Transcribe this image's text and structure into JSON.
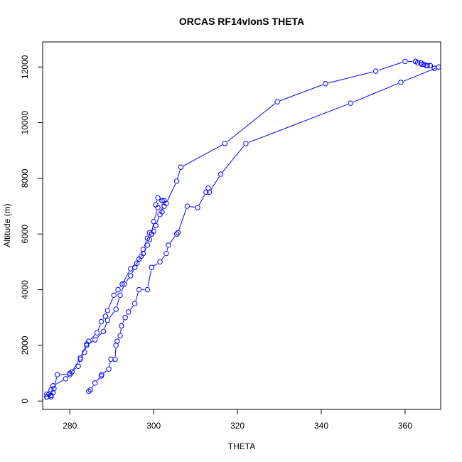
{
  "chart_data": {
    "type": "line",
    "title": "ORCAS RF14vlonS THETA",
    "xlabel": "THETA",
    "ylabel": "Altitude (m)",
    "xlim": [
      273.5,
      368.5
    ],
    "ylim": [
      -300,
      12900
    ],
    "xticks": [
      280,
      300,
      320,
      340,
      360
    ],
    "yticks": [
      0,
      2000,
      4000,
      6000,
      8000,
      10000,
      12000
    ],
    "grid": false,
    "marker": "open-circle",
    "color": "#0000ff",
    "series": [
      {
        "x": [
          284.5,
          284.9,
          286.0,
          287.5,
          287.6,
          289.3,
          289.8,
          290.8,
          291.0,
          291.3,
          292.0,
          292.3,
          293.2,
          294.0,
          295.5,
          296.5,
          298.5,
          299.5,
          301.5,
          303.0,
          303.5,
          305.5,
          305.8,
          308.0,
          310.5,
          312.5,
          313.0,
          313.3,
          316.0,
          322.0,
          347.0,
          359.0,
          368.0,
          367.0,
          366.0,
          365.3,
          364.5,
          363.8,
          362.5
        ],
        "y": [
          350,
          400,
          650,
          900,
          950,
          1150,
          1500,
          1500,
          2000,
          2150,
          2350,
          2700,
          3000,
          3200,
          3500,
          4000,
          4000,
          4800,
          5000,
          5300,
          5600,
          6000,
          6050,
          7000,
          6950,
          7500,
          7650,
          7500,
          8150,
          9250,
          10700,
          11450,
          12000,
          11950,
          12050,
          12050,
          12100,
          12150,
          12200
        ]
      },
      {
        "x": [
          274.5,
          274.5,
          275.5,
          275.5,
          276.0,
          276.2,
          277.0,
          280.0,
          280.5,
          282.5,
          284.0,
          284.5,
          286.5,
          287.5,
          288.5,
          289.0,
          290.5,
          291.5,
          292.5,
          294.5,
          296.0,
          297.0,
          297.5,
          298.5,
          299.0,
          299.5,
          300.0,
          301.0,
          302.0,
          302.0,
          303.0,
          305.5,
          306.5,
          317.0,
          329.5,
          341.0,
          353.0,
          360.0,
          362.5,
          363.0,
          364.0,
          365.0,
          366.0
        ],
        "y": [
          150,
          250,
          200,
          200,
          300,
          450,
          950,
          950,
          1050,
          1550,
          2050,
          2150,
          2450,
          2850,
          3050,
          3250,
          3800,
          4000,
          4200,
          4750,
          4950,
          5200,
          5450,
          5850,
          6050,
          6000,
          6450,
          6950,
          6800,
          7200,
          7100,
          7900,
          8400,
          9250,
          10750,
          11400,
          11850,
          12200,
          12200,
          12150,
          12100,
          12050,
          12050
        ]
      },
      {
        "x": [
          275.5,
          274.5,
          275.0,
          275.5,
          276.0,
          279.0,
          280.0,
          282.0,
          282.5,
          283.5,
          284.0,
          286.0,
          288.0,
          289.0,
          291.0,
          292.0,
          293.0,
          294.5,
          295.5,
          296.5,
          297.5,
          298.5,
          299.0,
          299.5,
          300.0,
          300.5,
          301.5,
          302.5,
          302.5,
          301.0,
          300.5
        ],
        "y": [
          150,
          150,
          250,
          400,
          550,
          800,
          1000,
          1250,
          1500,
          1750,
          2000,
          2200,
          2500,
          2900,
          3300,
          3800,
          4200,
          4500,
          4800,
          5100,
          5300,
          5600,
          5800,
          6000,
          6100,
          6300,
          6700,
          7000,
          7200,
          7300,
          7050
        ]
      }
    ]
  }
}
